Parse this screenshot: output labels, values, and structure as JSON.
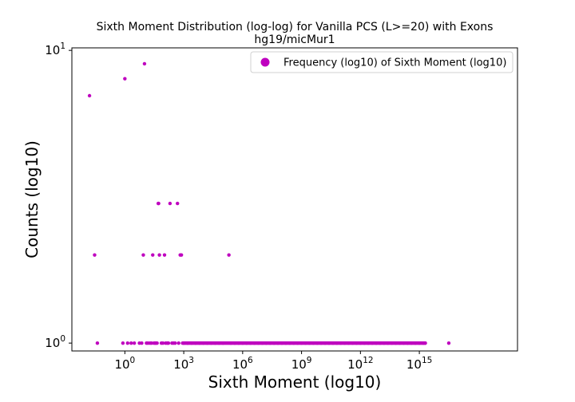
{
  "chart_data": {
    "type": "scatter",
    "title": "Sixth Moment Distribution (log-log) for Vanilla PCS (L>=20) with Exons",
    "subtitle": "hg19/micMur1",
    "xlabel": "Sixth Moment (log10)",
    "ylabel": "Counts (log10)",
    "x_scale": "log",
    "y_scale": "log",
    "xlim": [
      0.002,
      1e+20
    ],
    "ylim": [
      0.94,
      10.2
    ],
    "grid": false,
    "legend_position": "top-right",
    "x_ticks": [
      {
        "value": 1,
        "base": "10",
        "exp": "0"
      },
      {
        "value": 1000,
        "base": "10",
        "exp": "3"
      },
      {
        "value": 1000000,
        "base": "10",
        "exp": "6"
      },
      {
        "value": 1000000000,
        "base": "10",
        "exp": "9"
      },
      {
        "value": 1000000000000,
        "base": "10",
        "exp": "12"
      },
      {
        "value": 1000000000000000,
        "base": "10",
        "exp": "15"
      }
    ],
    "y_ticks": [
      {
        "value": 1,
        "base": "10",
        "exp": "0"
      },
      {
        "value": 10,
        "base": "10",
        "exp": "1"
      }
    ],
    "series": [
      {
        "name": "Frequency (log10) of Sixth Moment (log10)",
        "color": "#bf00bf",
        "points": [
          [
            0.0158,
            7
          ],
          [
            0.0288,
            2
          ],
          [
            0.0398,
            1
          ],
          [
            0.794,
            1
          ],
          [
            1,
            8
          ],
          [
            1.38,
            1
          ],
          [
            2.09,
            1
          ],
          [
            3.02,
            1
          ],
          [
            5.5,
            1
          ],
          [
            7.24,
            1
          ],
          [
            8.71,
            2
          ],
          [
            10,
            9
          ],
          [
            12.6,
            1
          ],
          [
            15.1,
            1
          ],
          [
            19.1,
            1
          ],
          [
            22.9,
            1
          ],
          [
            26.3,
            2
          ],
          [
            30.2,
            1
          ],
          [
            34.7,
            1
          ],
          [
            38,
            1
          ],
          [
            43.7,
            1
          ],
          [
            50.1,
            3
          ],
          [
            52.5,
            3
          ],
          [
            57.5,
            2
          ],
          [
            72.4,
            1
          ],
          [
            87.1,
            1
          ],
          [
            104.7,
            2
          ],
          [
            120.2,
            1
          ],
          [
            144.5,
            1
          ],
          [
            165.9,
            1
          ],
          [
            199.5,
            3
          ],
          [
            251.2,
            1
          ],
          [
            301.9,
            1
          ],
          [
            363.1,
            1
          ],
          [
            478.6,
            3
          ],
          [
            549.5,
            1
          ],
          [
            660.7,
            2
          ],
          [
            758.6,
            2
          ],
          [
            871,
            1
          ],
          [
            1000,
            1
          ],
          [
            1585,
            1
          ],
          [
            2512,
            1
          ],
          [
            3981,
            1
          ],
          [
            6310,
            1
          ],
          [
            10000,
            1
          ],
          [
            15849,
            1
          ],
          [
            25119,
            1
          ],
          [
            39811,
            1
          ],
          [
            63096,
            1
          ],
          [
            100000,
            1
          ],
          [
            199526,
            2
          ],
          [
            251189,
            1
          ],
          [
            398107,
            1
          ],
          [
            630957,
            1
          ],
          [
            1000000,
            1
          ],
          [
            1584893,
            1
          ],
          [
            2511886,
            1
          ],
          [
            3981072,
            1
          ],
          [
            6309573,
            1
          ],
          [
            10000000,
            1
          ],
          [
            15848932,
            1
          ],
          [
            25118864,
            1
          ],
          [
            39810717,
            1
          ],
          [
            63095734,
            1
          ],
          [
            100000000,
            1
          ],
          [
            158489319,
            1
          ],
          [
            251188643,
            1
          ],
          [
            398107171,
            1
          ],
          [
            630957344,
            1
          ],
          [
            1000000000,
            1
          ],
          [
            1584893192,
            1
          ],
          [
            2511886432,
            1
          ],
          [
            3981071706,
            1
          ],
          [
            6309573445,
            1
          ],
          [
            10000000000,
            1
          ],
          [
            15848931925,
            1
          ],
          [
            25118864315,
            1
          ],
          [
            39810717055,
            1
          ],
          [
            63095734448,
            1
          ],
          [
            100000000000,
            1
          ],
          [
            158489319246,
            1
          ],
          [
            251188643151,
            1
          ],
          [
            398107170553,
            1
          ],
          [
            630957344480,
            1
          ],
          [
            1000000000000,
            1
          ],
          [
            1584893192461,
            1
          ],
          [
            2511886431510,
            1
          ],
          [
            3981071705535,
            1
          ],
          [
            6309573444802,
            1
          ],
          [
            10000000000000,
            1
          ],
          [
            15848931924611,
            1
          ],
          [
            25118864315096,
            1
          ],
          [
            39810717055350,
            1
          ],
          [
            63095734448019,
            1
          ],
          [
            100000000000000,
            1
          ],
          [
            158489319246111,
            1
          ],
          [
            251188643150958,
            1
          ],
          [
            398107170553497,
            1
          ],
          [
            630957344480193,
            1
          ],
          [
            1000000000000000,
            1
          ],
          [
            1584893192461113,
            1
          ],
          [
            2000000000000000,
            1
          ],
          [
            31622776601683792,
            1
          ]
        ]
      }
    ]
  }
}
